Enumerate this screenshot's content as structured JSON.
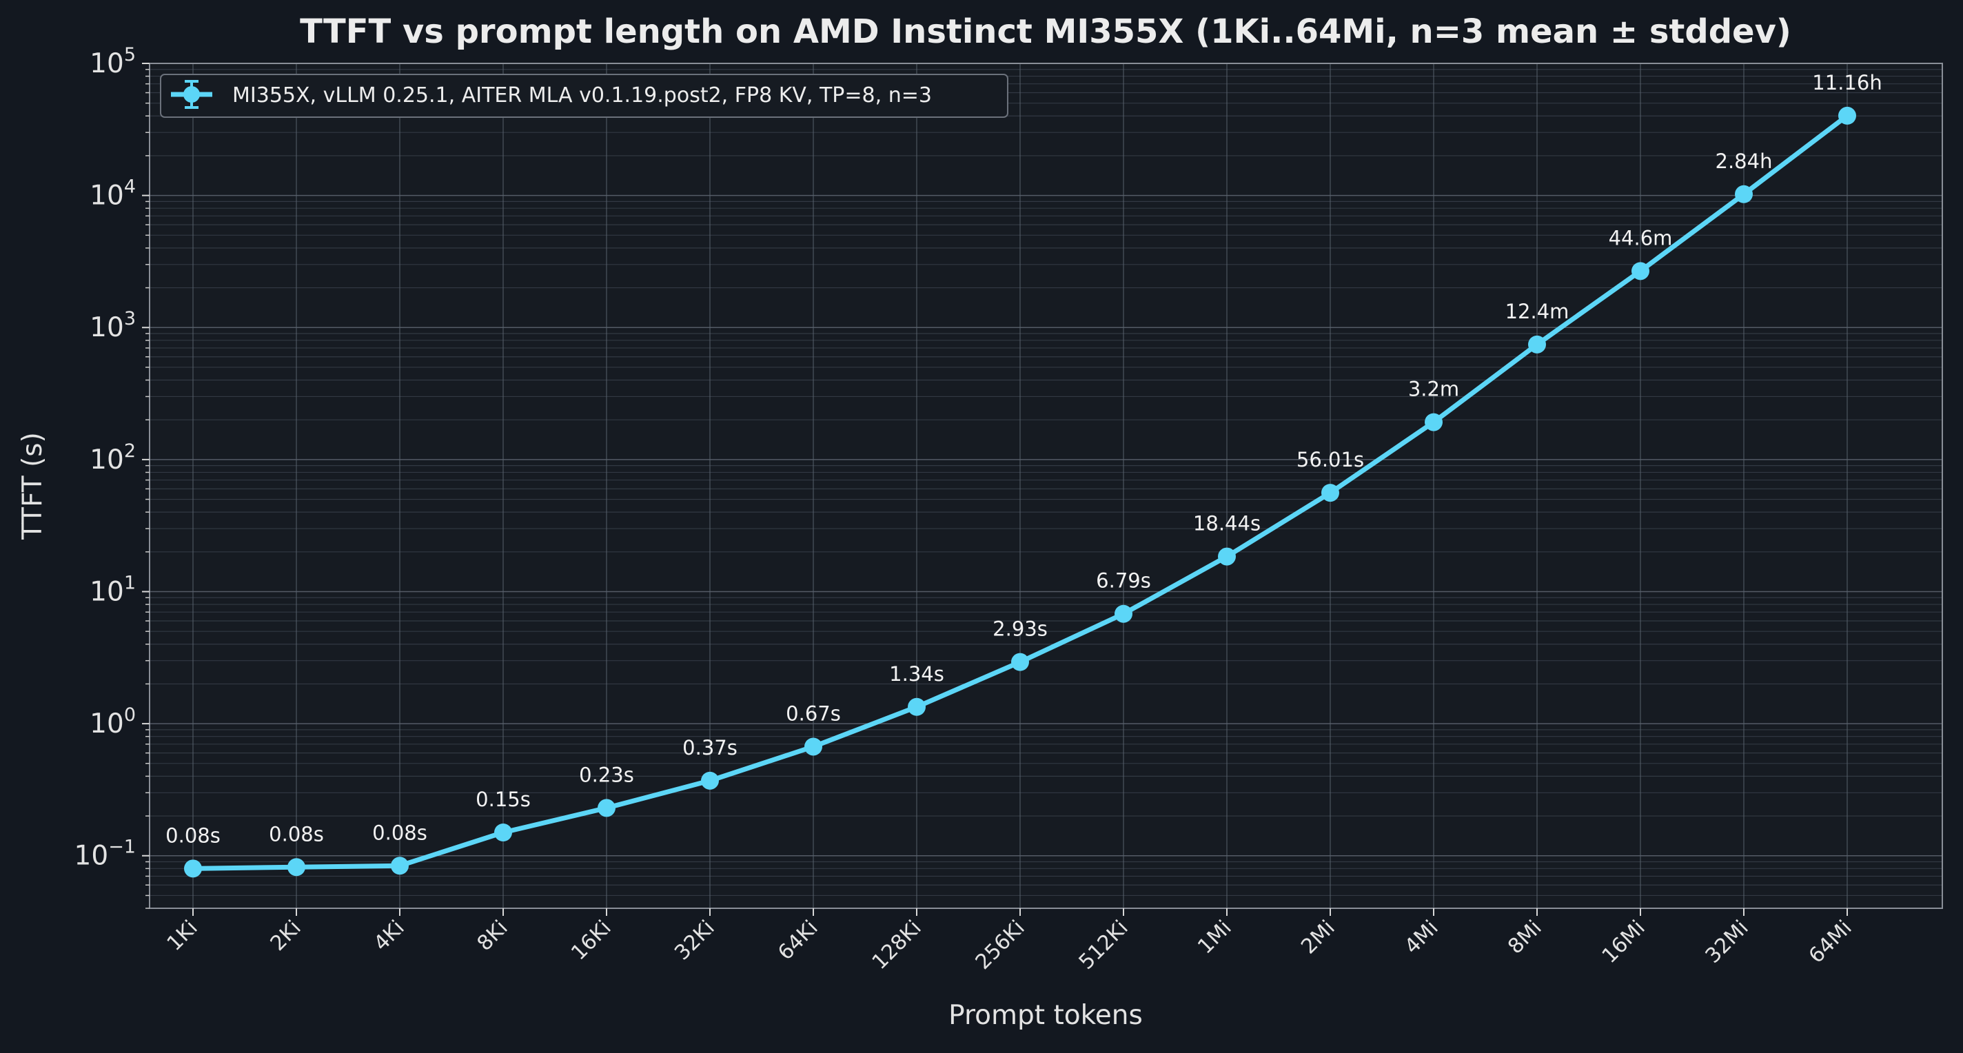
{
  "chart_data": {
    "type": "line",
    "title": "TTFT vs prompt length on AMD Instinct MI355X (1Ki..64Mi, n=3 mean ± stddev)",
    "xlabel": "Prompt tokens",
    "ylabel": "TTFT (s)",
    "yscale": "log",
    "ylim": [
      0.04,
      100000
    ],
    "yticks": [
      {
        "base": "10",
        "exp": "−1",
        "value": 0.1
      },
      {
        "base": "10",
        "exp": "0",
        "value": 1
      },
      {
        "base": "10",
        "exp": "1",
        "value": 10
      },
      {
        "base": "10",
        "exp": "2",
        "value": 100
      },
      {
        "base": "10",
        "exp": "3",
        "value": 1000
      },
      {
        "base": "10",
        "exp": "4",
        "value": 10000
      },
      {
        "base": "10",
        "exp": "5",
        "value": 100000
      }
    ],
    "grid": true,
    "legend_position": "top-left",
    "series_color": "#5cd6f7",
    "categories": [
      "1Ki",
      "2Ki",
      "4Ki",
      "8Ki",
      "16Ki",
      "32Ki",
      "64Ki",
      "128Ki",
      "256Ki",
      "512Ki",
      "1Mi",
      "2Mi",
      "4Mi",
      "8Mi",
      "16Mi",
      "32Mi",
      "64Mi"
    ],
    "series": [
      {
        "name": "MI355X, vLLM 0.25.1, AITER MLA v0.1.19.post2, FP8 KV, TP=8, n=3",
        "values": [
          0.08,
          0.082,
          0.084,
          0.15,
          0.23,
          0.37,
          0.67,
          1.34,
          2.93,
          6.79,
          18.44,
          56.01,
          192,
          744,
          2676,
          10224,
          40176
        ],
        "data_labels": [
          "0.08s",
          "0.08s",
          "0.08s",
          "0.15s",
          "0.23s",
          "0.37s",
          "0.67s",
          "1.34s",
          "2.93s",
          "6.79s",
          "18.44s",
          "56.01s",
          "3.2m",
          "12.4m",
          "44.6m",
          "2.84h",
          "11.16h"
        ]
      }
    ]
  }
}
